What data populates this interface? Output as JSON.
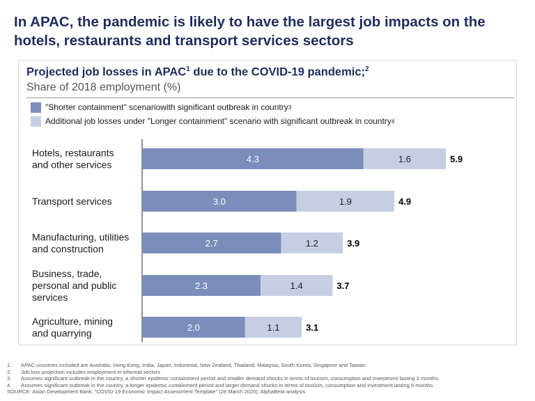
{
  "headline": "In APAC, the pandemic is likely to have the largest job impacts on the hotels, restaurants and transport services sectors",
  "chart_data": {
    "type": "bar",
    "orientation": "horizontal",
    "stacked": true,
    "title": "Projected job losses in APAC",
    "title_sup": "1",
    "title_suffix": " due to the COVID-19 pandemic;",
    "title_suffix_sup": "2",
    "subtitle": "Share of 2018 employment (%)",
    "legend_position": "top-left",
    "categories": [
      [
        "Hotels, restaurants",
        "and other services"
      ],
      [
        "Transport services"
      ],
      [
        "Manufacturing, utilities",
        "and construction"
      ],
      [
        "Business, trade,",
        "personal and public",
        "services"
      ],
      [
        "Agriculture, mining",
        "and quarrying"
      ]
    ],
    "series": [
      {
        "name": "\"Shorter containment\" scenariowith significant outbreak in country",
        "name_sup": "3",
        "color": "#7b8dbb",
        "label_color": "#ffffff",
        "values": [
          4.3,
          3.0,
          2.7,
          2.3,
          2.0
        ]
      },
      {
        "name": "Additional job losses under \"Longer containment\" scenario with significant outbreak in country",
        "name_sup": "4",
        "color": "#c5cee3",
        "label_color": "#222222",
        "values": [
          1.6,
          1.9,
          1.2,
          1.4,
          1.1
        ]
      }
    ],
    "totals": [
      5.9,
      4.9,
      3.9,
      3.7,
      3.1
    ],
    "xlim": [
      0,
      5.9
    ],
    "grid": false
  },
  "footnotes": [
    {
      "num": "1.",
      "text": "APAC countries included are Australia, Hong Kong, India, Japan, Indonesia, New Zealand, Thailand, Malaysia, South Korea, Singapore and Taiwan"
    },
    {
      "num": "2.",
      "text": "Job loss projection includes employment in informal sectors"
    },
    {
      "num": "3.",
      "text": "Assumes significant outbreak in the country, a shorter epidemic containment period and smaller demand shocks in terms of tourism, consumption and investment lasting 3 months."
    },
    {
      "num": "4.",
      "text": "Assumes significant outbreak in the country, a longer epidemic containment period and larger demand shocks in terms of tourism, consumption and investment lasting 6 months."
    }
  ],
  "source": "SOURCE: Asian Development Bank, “COVID-19 Economic Impact Assessment Template” (28 March 2020); AlphaBeta analysis"
}
